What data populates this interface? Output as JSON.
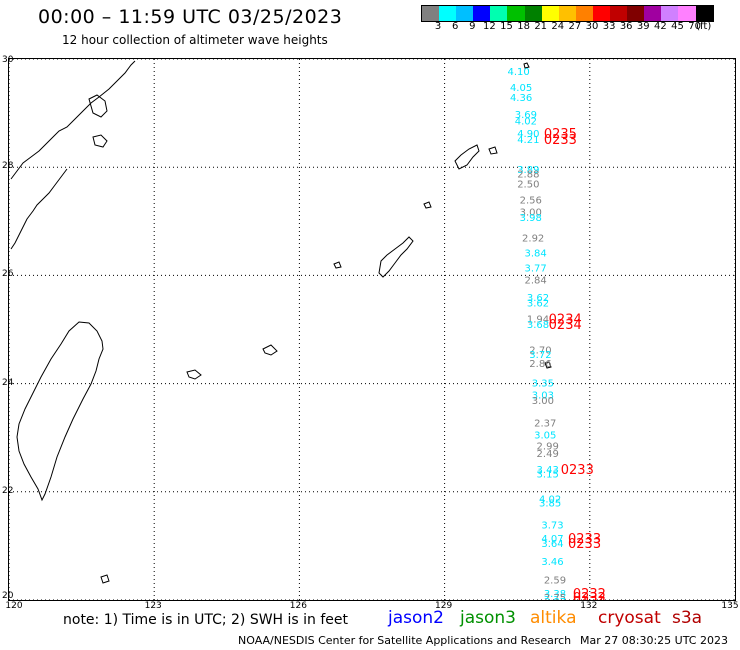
{
  "header": {
    "title": "00:00 – 11:59 UTC 03/25/2023",
    "subtitle": "12 hour collection of altimeter wave heights"
  },
  "color_scale": {
    "colors": [
      "#808080",
      "#00ffff",
      "#00bfff",
      "#0000ff",
      "#00ffb0",
      "#00c000",
      "#008000",
      "#ffff00",
      "#ffc000",
      "#ff8000",
      "#ff0000",
      "#c00000",
      "#800000",
      "#a000a0",
      "#d080ff",
      "#ff80ff",
      "#000000"
    ],
    "labels": [
      "3",
      "6",
      "9",
      "12",
      "15",
      "18",
      "21",
      "24",
      "27",
      "30",
      "33",
      "36",
      "39",
      "42",
      "45",
      "70",
      "(ft)"
    ]
  },
  "map": {
    "lon_ticks": [
      "120",
      "123",
      "126",
      "129",
      "132",
      "135"
    ],
    "lat_ticks": [
      "30",
      "28",
      "26",
      "24",
      "22",
      "20"
    ],
    "lon_range": [
      120,
      135
    ],
    "lat_range": [
      20,
      30
    ],
    "grid": true
  },
  "observations": [
    {
      "lon": 130.3,
      "lat": 29.78,
      "text": "4.10",
      "color": "#00e5ff"
    },
    {
      "lon": 130.35,
      "lat": 29.48,
      "text": "4.05",
      "color": "#00e5ff"
    },
    {
      "lon": 130.35,
      "lat": 29.3,
      "text": "4.36",
      "color": "#00e5ff"
    },
    {
      "lon": 130.45,
      "lat": 28.98,
      "text": "3.69",
      "color": "#00e5ff"
    },
    {
      "lon": 130.45,
      "lat": 28.86,
      "text": "4.02",
      "color": "#00e5ff"
    },
    {
      "lon": 130.5,
      "lat": 28.63,
      "text": "4.90",
      "color": "#00e5ff"
    },
    {
      "lon": 130.5,
      "lat": 28.52,
      "text": "4.21",
      "color": "#00e5ff"
    },
    {
      "lon": 130.5,
      "lat": 27.97,
      "text": "3.89",
      "color": "#00e5ff"
    },
    {
      "lon": 130.5,
      "lat": 27.88,
      "text": "2.88",
      "color": "#808080"
    },
    {
      "lon": 130.5,
      "lat": 27.7,
      "text": "2.50",
      "color": "#808080"
    },
    {
      "lon": 130.55,
      "lat": 27.4,
      "text": "2.56",
      "color": "#808080"
    },
    {
      "lon": 130.55,
      "lat": 27.18,
      "text": "3.00",
      "color": "#808080"
    },
    {
      "lon": 130.55,
      "lat": 27.08,
      "text": "3.98",
      "color": "#00e5ff"
    },
    {
      "lon": 130.6,
      "lat": 26.7,
      "text": "2.92",
      "color": "#808080"
    },
    {
      "lon": 130.65,
      "lat": 26.42,
      "text": "3.84",
      "color": "#00e5ff"
    },
    {
      "lon": 130.65,
      "lat": 26.15,
      "text": "3.77",
      "color": "#00e5ff"
    },
    {
      "lon": 130.65,
      "lat": 25.92,
      "text": "2.84",
      "color": "#808080"
    },
    {
      "lon": 130.7,
      "lat": 25.6,
      "text": "3.62",
      "color": "#00e5ff"
    },
    {
      "lon": 130.7,
      "lat": 25.5,
      "text": "3.62",
      "color": "#00e5ff"
    },
    {
      "lon": 130.7,
      "lat": 25.2,
      "text": "1.94",
      "color": "#808080"
    },
    {
      "lon": 130.7,
      "lat": 25.1,
      "text": "3.68",
      "color": "#00e5ff"
    },
    {
      "lon": 130.75,
      "lat": 24.63,
      "text": "2.70",
      "color": "#808080"
    },
    {
      "lon": 130.75,
      "lat": 24.55,
      "text": "3.72",
      "color": "#00e5ff"
    },
    {
      "lon": 130.75,
      "lat": 24.38,
      "text": "2.86",
      "color": "#808080"
    },
    {
      "lon": 130.8,
      "lat": 24.02,
      "text": "3.35",
      "color": "#00e5ff"
    },
    {
      "lon": 130.8,
      "lat": 23.8,
      "text": "3.03",
      "color": "#00e5ff"
    },
    {
      "lon": 130.8,
      "lat": 23.7,
      "text": "3.00",
      "color": "#808080"
    },
    {
      "lon": 130.85,
      "lat": 23.28,
      "text": "2.37",
      "color": "#808080"
    },
    {
      "lon": 130.85,
      "lat": 23.06,
      "text": "3.05",
      "color": "#00e5ff"
    },
    {
      "lon": 130.9,
      "lat": 22.86,
      "text": "2.99",
      "color": "#808080"
    },
    {
      "lon": 130.9,
      "lat": 22.72,
      "text": "2.49",
      "color": "#808080"
    },
    {
      "lon": 130.9,
      "lat": 22.42,
      "text": "3.43",
      "color": "#00e5ff"
    },
    {
      "lon": 130.9,
      "lat": 22.34,
      "text": "3.15",
      "color": "#00e5ff"
    },
    {
      "lon": 130.95,
      "lat": 21.88,
      "text": "4.02",
      "color": "#00e5ff"
    },
    {
      "lon": 130.95,
      "lat": 21.8,
      "text": "3.85",
      "color": "#00e5ff"
    },
    {
      "lon": 131.0,
      "lat": 21.4,
      "text": "3.73",
      "color": "#00e5ff"
    },
    {
      "lon": 131.0,
      "lat": 21.15,
      "text": "4.07",
      "color": "#00e5ff"
    },
    {
      "lon": 131.0,
      "lat": 21.05,
      "text": "3.64",
      "color": "#00e5ff"
    },
    {
      "lon": 131.0,
      "lat": 20.72,
      "text": "3.46",
      "color": "#00e5ff"
    },
    {
      "lon": 131.05,
      "lat": 20.38,
      "text": "2.59",
      "color": "#808080"
    },
    {
      "lon": 131.05,
      "lat": 20.13,
      "text": "3.38",
      "color": "#00e5ff"
    },
    {
      "lon": 131.05,
      "lat": 20.06,
      "text": "2.75",
      "color": "#808080"
    },
    {
      "lon": 131.05,
      "lat": 19.98,
      "text": "3.87",
      "color": "#00e5ff"
    }
  ],
  "pass_labels": [
    {
      "lon": 131.05,
      "lat": 28.63,
      "text": "0235",
      "color": "#ff0000"
    },
    {
      "lon": 131.05,
      "lat": 28.52,
      "text": "0233",
      "color": "#ff0000"
    },
    {
      "lon": 131.15,
      "lat": 25.2,
      "text": "0234",
      "color": "#ff0000"
    },
    {
      "lon": 131.15,
      "lat": 25.1,
      "text": "0234",
      "color": "#ff0000"
    },
    {
      "lon": 131.4,
      "lat": 22.42,
      "text": "0233",
      "color": "#ff0000"
    },
    {
      "lon": 131.55,
      "lat": 21.15,
      "text": "0233",
      "color": "#ff0000"
    },
    {
      "lon": 131.55,
      "lat": 21.05,
      "text": "0233",
      "color": "#ff0000"
    },
    {
      "lon": 131.65,
      "lat": 20.13,
      "text": "0232",
      "color": "#ff0000"
    },
    {
      "lon": 131.65,
      "lat": 20.06,
      "text": "0232",
      "color": "#ff0000"
    },
    {
      "lon": 131.65,
      "lat": 19.98,
      "text": "0232",
      "color": "#ff0000"
    }
  ],
  "footer": {
    "note": "note: 1) Time is in UTC; 2) SWH is in feet",
    "satellites": [
      {
        "name": "jason2",
        "color": "#0000ff"
      },
      {
        "name": "jason3",
        "color": "#009000"
      },
      {
        "name": "altika",
        "color": "#ff8c00"
      },
      {
        "name": "cryosat",
        "color": "#c00000"
      },
      {
        "name": "s3a",
        "color": "#b00000"
      }
    ],
    "credit": "NOAA/NESDIS Center for Satellite Applications and Research",
    "timestamp": "Mar 27 08:30:25 UTC 2023"
  }
}
